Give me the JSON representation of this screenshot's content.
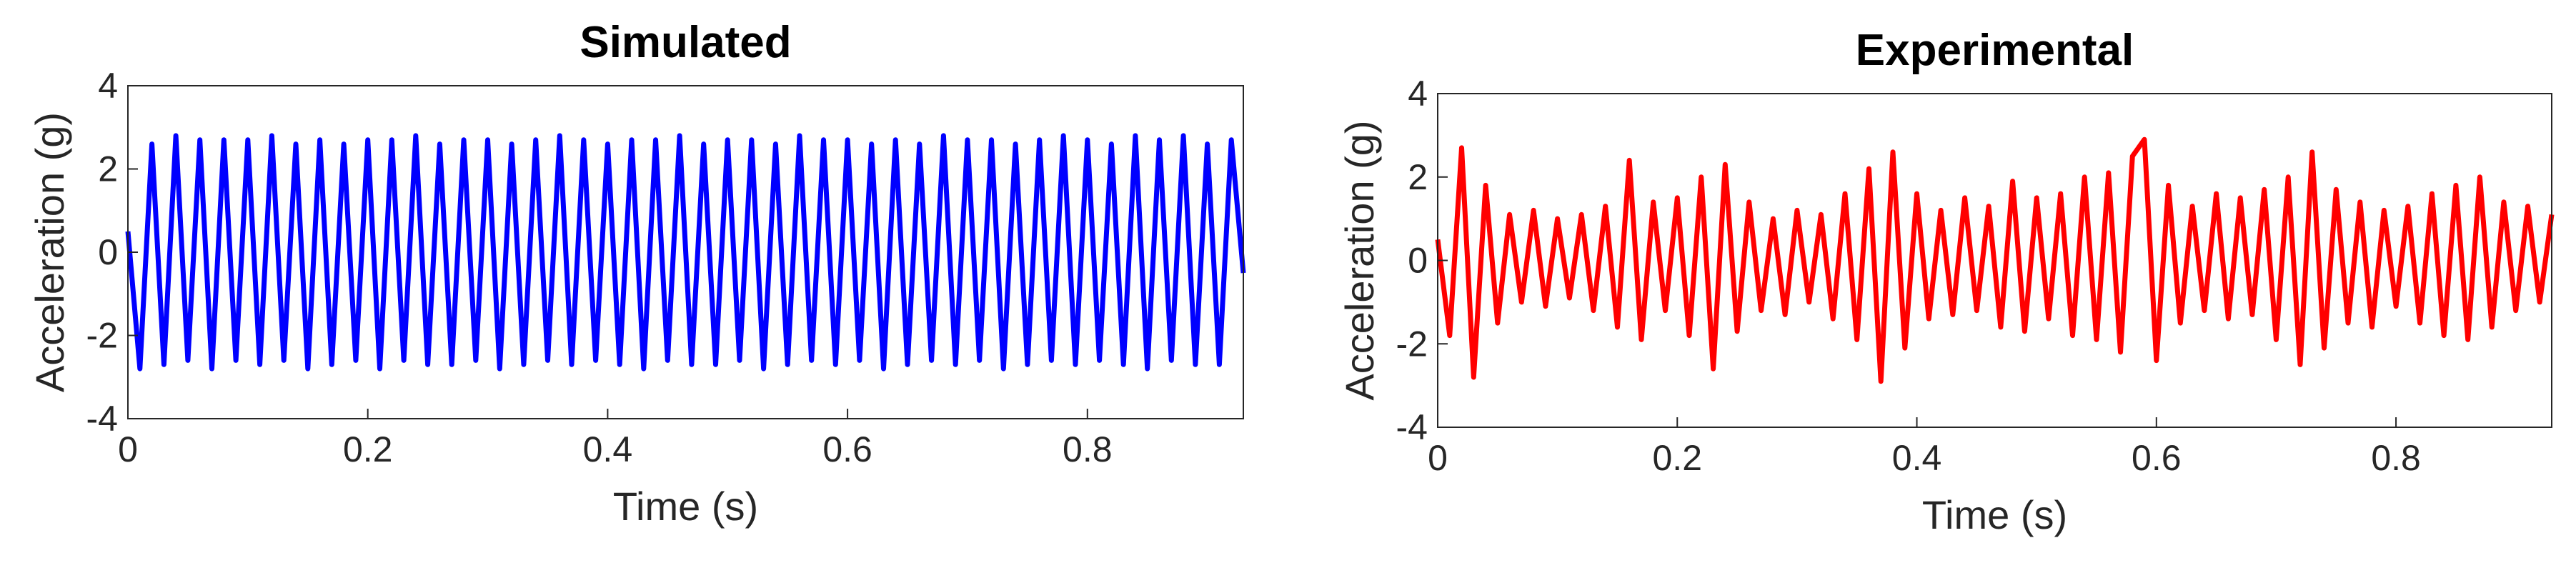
{
  "chart_data": [
    {
      "type": "line",
      "title": "Simulated",
      "xlabel": "Time (s)",
      "ylabel": "Acceleration (g)",
      "x": [
        0,
        0.01,
        0.02,
        0.03,
        0.04,
        0.05,
        0.06,
        0.07,
        0.08,
        0.09,
        0.1,
        0.11,
        0.12,
        0.13,
        0.14,
        0.15,
        0.16,
        0.17,
        0.18,
        0.19,
        0.2,
        0.21,
        0.22,
        0.23,
        0.24,
        0.25,
        0.26,
        0.27,
        0.28,
        0.29,
        0.3,
        0.31,
        0.32,
        0.33,
        0.34,
        0.35,
        0.36,
        0.37,
        0.38,
        0.39,
        0.4,
        0.41,
        0.42,
        0.43,
        0.44,
        0.45,
        0.46,
        0.47,
        0.48,
        0.49,
        0.5,
        0.51,
        0.52,
        0.53,
        0.54,
        0.55,
        0.56,
        0.57,
        0.58,
        0.59,
        0.6,
        0.61,
        0.62,
        0.63,
        0.64,
        0.65,
        0.66,
        0.67,
        0.68,
        0.69,
        0.7,
        0.71,
        0.72,
        0.73,
        0.74,
        0.75,
        0.76,
        0.77,
        0.78,
        0.79,
        0.8,
        0.81,
        0.82,
        0.83,
        0.84,
        0.85,
        0.86,
        0.87,
        0.88,
        0.89,
        0.9,
        0.91,
        0.92,
        0.93
      ],
      "series": [
        {
          "color": "#0000ff",
          "values": [
            0.5,
            -2.8,
            2.6,
            -2.7,
            2.8,
            -2.6,
            2.7,
            -2.8,
            2.7,
            -2.6,
            2.7,
            -2.7,
            2.8,
            -2.6,
            2.6,
            -2.8,
            2.7,
            -2.7,
            2.6,
            -2.6,
            2.7,
            -2.8,
            2.7,
            -2.6,
            2.8,
            -2.7,
            2.6,
            -2.7,
            2.7,
            -2.6,
            2.7,
            -2.8,
            2.6,
            -2.7,
            2.7,
            -2.6,
            2.8,
            -2.7,
            2.7,
            -2.6,
            2.6,
            -2.7,
            2.7,
            -2.8,
            2.7,
            -2.6,
            2.8,
            -2.7,
            2.6,
            -2.7,
            2.7,
            -2.6,
            2.7,
            -2.8,
            2.6,
            -2.7,
            2.8,
            -2.6,
            2.7,
            -2.7,
            2.7,
            -2.6,
            2.6,
            -2.8,
            2.7,
            -2.7,
            2.6,
            -2.6,
            2.8,
            -2.7,
            2.7,
            -2.6,
            2.7,
            -2.8,
            2.6,
            -2.7,
            2.7,
            -2.6,
            2.8,
            -2.7,
            2.7,
            -2.6,
            2.6,
            -2.7,
            2.8,
            -2.8,
            2.7,
            -2.6,
            2.8,
            -2.7,
            2.6,
            -2.7,
            2.7,
            -0.5
          ]
        }
      ],
      "xlim": [
        0,
        0.93
      ],
      "ylim": [
        -4,
        4
      ],
      "xticks": [
        0,
        0.2,
        0.4,
        0.6,
        0.8
      ],
      "yticks": [
        -4,
        -2,
        0,
        2,
        4
      ]
    },
    {
      "type": "line",
      "title": "Experimental",
      "xlabel": "Time (s)",
      "ylabel": "Acceleration (g)",
      "x": [
        0,
        0.01,
        0.02,
        0.03,
        0.04,
        0.05,
        0.06,
        0.07,
        0.08,
        0.09,
        0.1,
        0.11,
        0.12,
        0.13,
        0.14,
        0.15,
        0.16,
        0.17,
        0.18,
        0.19,
        0.2,
        0.21,
        0.22,
        0.23,
        0.24,
        0.25,
        0.26,
        0.27,
        0.28,
        0.29,
        0.3,
        0.31,
        0.32,
        0.33,
        0.34,
        0.35,
        0.36,
        0.37,
        0.38,
        0.39,
        0.4,
        0.41,
        0.42,
        0.43,
        0.44,
        0.45,
        0.46,
        0.47,
        0.48,
        0.49,
        0.5,
        0.51,
        0.52,
        0.53,
        0.54,
        0.55,
        0.56,
        0.57,
        0.58,
        0.59,
        0.6,
        0.61,
        0.62,
        0.63,
        0.64,
        0.65,
        0.66,
        0.67,
        0.68,
        0.69,
        0.7,
        0.71,
        0.72,
        0.73,
        0.74,
        0.75,
        0.76,
        0.77,
        0.78,
        0.79,
        0.8,
        0.81,
        0.82,
        0.83,
        0.84,
        0.85,
        0.86,
        0.87,
        0.88,
        0.89,
        0.9,
        0.91,
        0.92,
        0.93
      ],
      "series": [
        {
          "color": "#ff0000",
          "values": [
            0.5,
            -1.8,
            2.7,
            -2.8,
            1.8,
            -1.5,
            1.1,
            -1.0,
            1.2,
            -1.1,
            1.0,
            -0.9,
            1.1,
            -1.2,
            1.3,
            -1.6,
            2.4,
            -1.9,
            1.4,
            -1.2,
            1.5,
            -1.8,
            2.0,
            -2.6,
            2.3,
            -1.7,
            1.4,
            -1.2,
            1.0,
            -1.3,
            1.2,
            -1.0,
            1.1,
            -1.4,
            1.6,
            -1.9,
            2.2,
            -2.9,
            2.6,
            -2.1,
            1.6,
            -1.4,
            1.2,
            -1.3,
            1.5,
            -1.2,
            1.3,
            -1.6,
            1.9,
            -1.7,
            1.5,
            -1.4,
            1.6,
            -1.8,
            2.0,
            -1.9,
            2.1,
            -2.2,
            2.5,
            2.9,
            -2.4,
            1.8,
            -1.5,
            1.3,
            -1.2,
            1.6,
            -1.4,
            1.5,
            -1.3,
            1.7,
            -1.9,
            2.0,
            -2.5,
            2.6,
            -2.1,
            1.7,
            -1.5,
            1.4,
            -1.6,
            1.2,
            -1.1,
            1.3,
            -1.5,
            1.6,
            -1.8,
            1.8,
            -1.9,
            2.0,
            -1.6,
            1.4,
            -1.2,
            1.3,
            -1.0,
            1.1
          ]
        }
      ],
      "xlim": [
        0,
        0.93
      ],
      "ylim": [
        -4,
        4
      ],
      "xticks": [
        0,
        0.2,
        0.4,
        0.6,
        0.8
      ],
      "yticks": [
        -4,
        -2,
        0,
        2,
        4
      ]
    }
  ]
}
